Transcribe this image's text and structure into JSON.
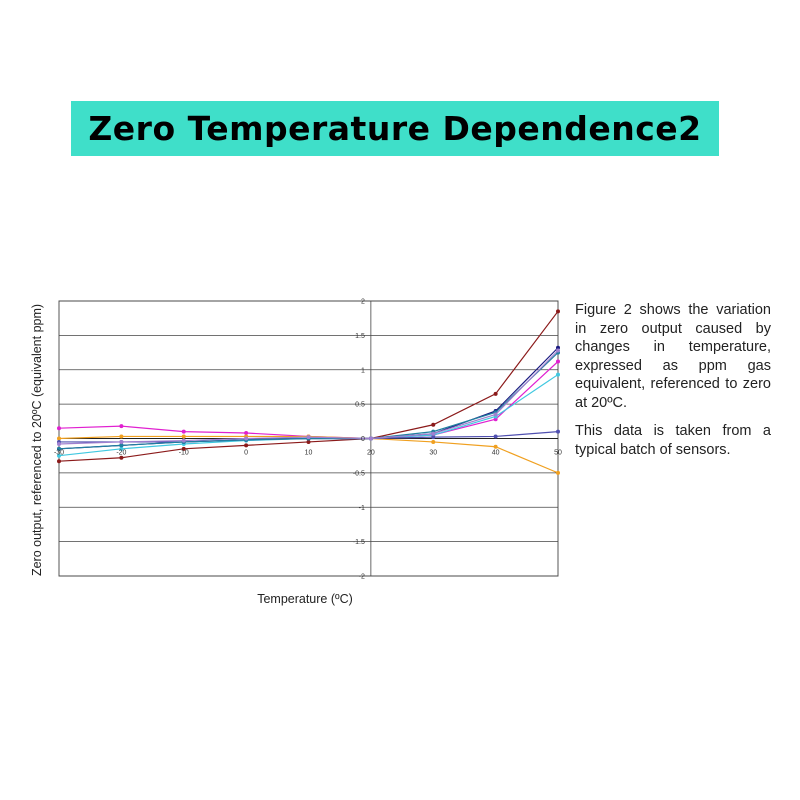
{
  "title": "Zero Temperature Dependence2",
  "side_text": {
    "p1": "Figure 2 shows the variation in zero output caused by changes in temperature, expressed as ppm gas equivalent, referenced to zero at 20ºC.",
    "p2": "This data is taken from a typical batch of sensors."
  },
  "chart_data": {
    "type": "line",
    "xlabel": "Temperature (ºC)",
    "ylabel": "Zero output, referenced to 20ºC (equivalent ppm)",
    "x": [
      -30,
      -20,
      -10,
      0,
      10,
      20,
      30,
      40,
      50
    ],
    "xlim": [
      -30,
      50
    ],
    "ylim": [
      -2,
      2
    ],
    "yticks": [
      "2",
      "1.5",
      "1",
      "0.5",
      "0",
      "-0.5",
      "-1",
      "-1.5",
      "-2"
    ],
    "xticks": [
      "-30",
      "-20",
      "-10",
      "0",
      "10",
      "20",
      "30",
      "40",
      "50"
    ],
    "grid": true,
    "series": [
      {
        "color": "#8b1a1a",
        "values": [
          -0.33,
          -0.28,
          -0.15,
          -0.1,
          -0.05,
          0,
          0.2,
          0.65,
          1.85
        ]
      },
      {
        "color": "#e020d0",
        "values": [
          0.15,
          0.18,
          0.1,
          0.08,
          0.03,
          0,
          0.05,
          0.28,
          1.12
        ]
      },
      {
        "color": "#f0a020",
        "values": [
          0.0,
          0.03,
          0.03,
          0.03,
          0.03,
          0,
          -0.05,
          -0.12,
          -0.5
        ]
      },
      {
        "color": "#1a1a80",
        "values": [
          -0.15,
          -0.1,
          -0.05,
          -0.02,
          0.0,
          0,
          0.07,
          0.4,
          1.32
        ]
      },
      {
        "color": "#40c8e0",
        "values": [
          -0.25,
          -0.15,
          -0.08,
          -0.03,
          0.0,
          0,
          0.05,
          0.32,
          0.93
        ]
      },
      {
        "color": "#5050b0",
        "values": [
          -0.05,
          -0.05,
          -0.05,
          -0.02,
          0.0,
          0,
          0.02,
          0.03,
          0.1
        ]
      },
      {
        "color": "#2080a0",
        "values": [
          -0.15,
          -0.1,
          -0.05,
          -0.02,
          0.0,
          0,
          0.1,
          0.38,
          1.25
        ]
      },
      {
        "color": "#a080d0",
        "values": [
          -0.08,
          -0.05,
          -0.03,
          0.0,
          0.02,
          0,
          0.07,
          0.35,
          1.28
        ]
      }
    ]
  }
}
